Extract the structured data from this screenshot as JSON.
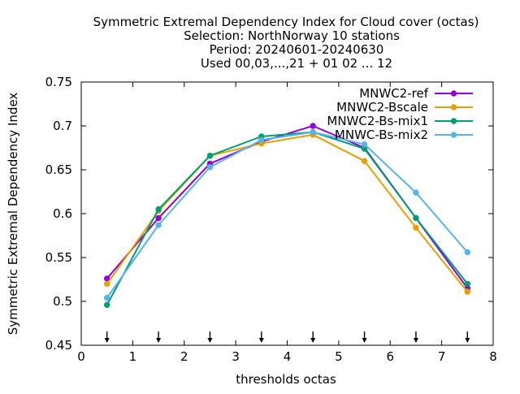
{
  "chart_data": {
    "type": "line",
    "title_lines": [
      "Symmetric Extremal Dependency Index  for Cloud cover (octas)",
      "Selection: NorthNorway     10 stations",
      "Period: 20240601-20240630",
      "Used 00,03,...,21 + 01 02 ... 12"
    ],
    "xlabel": "thresholds octas",
    "ylabel": "Symmetric Extremal Dependency Index",
    "xlim": [
      0,
      8
    ],
    "ylim": [
      0.45,
      0.75
    ],
    "x_ticks": [
      "0",
      "1",
      "2",
      "3",
      "4",
      "5",
      "6",
      "7",
      "8"
    ],
    "y_ticks": [
      "0.45",
      "0.5",
      "0.55",
      "0.6",
      "0.65",
      "0.7",
      "0.75"
    ],
    "grid": false,
    "legend_position": "top-right",
    "x": [
      0.5,
      1.5,
      2.5,
      3.5,
      4.5,
      5.5,
      6.5,
      7.5
    ],
    "series": [
      {
        "name": "MNWC2-ref",
        "color": "#9400d3",
        "values": [
          0.526,
          0.595,
          0.657,
          0.682,
          0.7,
          0.675,
          0.595,
          0.515
        ]
      },
      {
        "name": "MNWC2-Bscale",
        "color": "#e69f00",
        "values": [
          0.52,
          0.603,
          0.666,
          0.68,
          0.69,
          0.66,
          0.584,
          0.511
        ]
      },
      {
        "name": "MNWC2-Bs-mix1",
        "color": "#009e73",
        "values": [
          0.496,
          0.605,
          0.666,
          0.688,
          0.693,
          0.674,
          0.595,
          0.52
        ]
      },
      {
        "name": "MNWC-Bs-mix2",
        "color": "#56b4e9",
        "values": [
          0.504,
          0.587,
          0.653,
          0.684,
          0.693,
          0.679,
          0.624,
          0.556
        ]
      }
    ],
    "annotations": {
      "arrow_x": [
        0.5,
        1.5,
        2.5,
        3.5,
        4.5,
        5.5,
        6.5,
        7.5
      ],
      "symbol": "down-arrow"
    }
  }
}
